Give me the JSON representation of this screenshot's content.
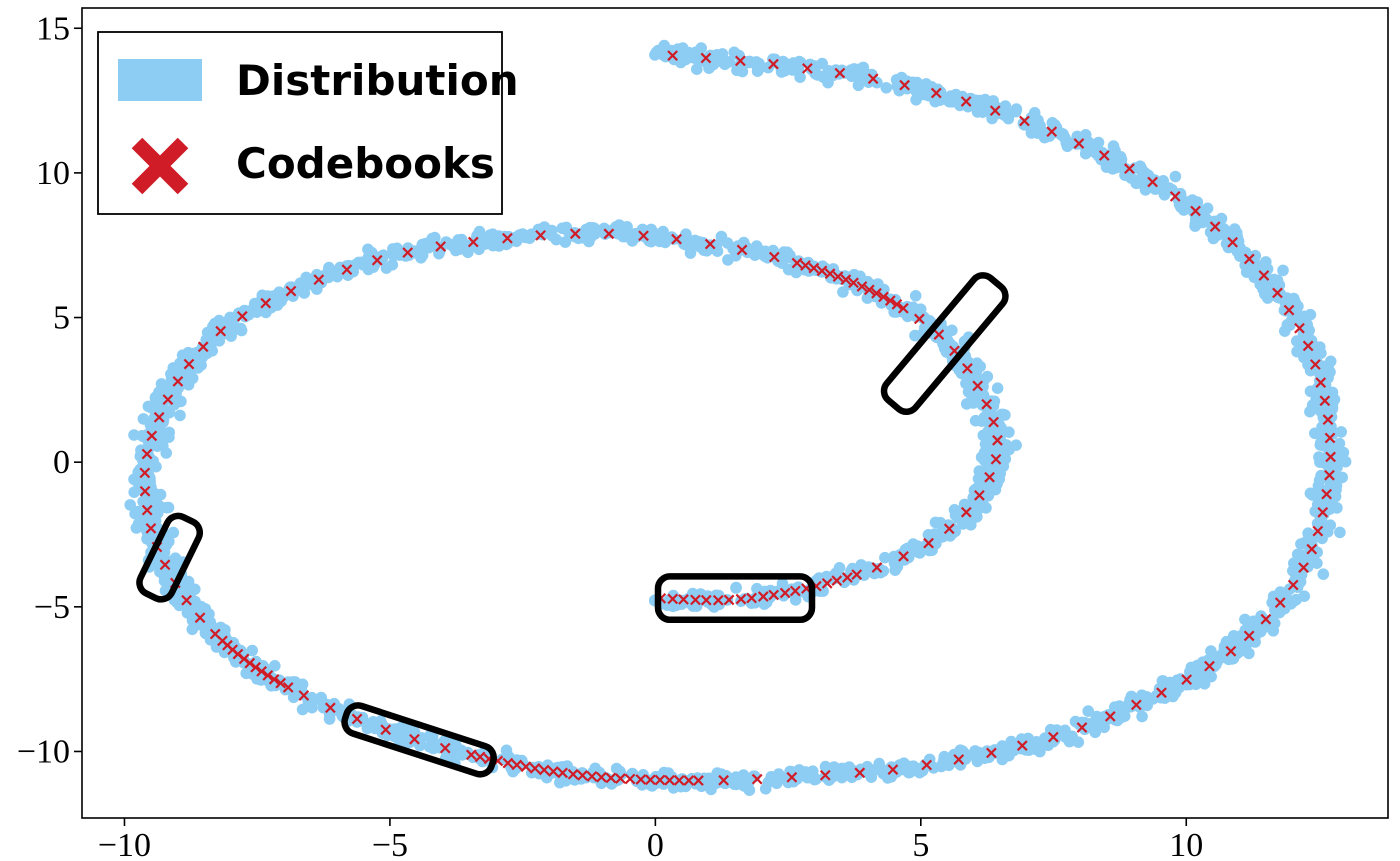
{
  "chart_data": {
    "type": "scatter",
    "xlim": [
      -10.8,
      13.8
    ],
    "ylim": [
      -12.3,
      15.7
    ],
    "xticks": [
      -10,
      -5,
      0,
      5,
      10
    ],
    "yticks": [
      -10,
      -5,
      0,
      5,
      10,
      15
    ],
    "xtick_labels": [
      "−10",
      "−5",
      "0",
      "5",
      "10"
    ],
    "ytick_labels": [
      "−10",
      "−5",
      "0",
      "5",
      "10",
      "15"
    ],
    "grid": false,
    "legend_position": "top-left",
    "series": [
      {
        "name": "Distribution",
        "marker": "filled-circle",
        "color": "#8ecdf3",
        "path_points": [
          [
            0,
            -4.7
          ],
          [
            1.5,
            -4.75
          ],
          [
            3,
            -4.3
          ],
          [
            4.5,
            -3.4
          ],
          [
            5.6,
            -2.2
          ],
          [
            6.3,
            -0.5
          ],
          [
            6.4,
            1.2
          ],
          [
            5.7,
            3.7
          ],
          [
            4.6,
            5.4
          ],
          [
            3,
            6.7
          ],
          [
            1,
            7.55
          ],
          [
            -1,
            7.9
          ],
          [
            -3,
            7.7
          ],
          [
            -5,
            7.1
          ],
          [
            -7,
            5.8
          ],
          [
            -8.4,
            4.2
          ],
          [
            -9.2,
            2.1
          ],
          [
            -9.6,
            0
          ],
          [
            -9.5,
            -2.3
          ],
          [
            -9.0,
            -4.3
          ],
          [
            -8.2,
            -6.1
          ],
          [
            -7,
            -7.7
          ],
          [
            -5.3,
            -9.1
          ],
          [
            -3.5,
            -10.1
          ],
          [
            -1.5,
            -10.8
          ],
          [
            0.5,
            -11.0
          ],
          [
            2.5,
            -10.9
          ],
          [
            5,
            -10.5
          ],
          [
            7.5,
            -9.5
          ],
          [
            9.5,
            -8.0
          ],
          [
            11,
            -6.3
          ],
          [
            12.1,
            -4.0
          ],
          [
            12.6,
            -1.5
          ],
          [
            12.7,
            1.0
          ],
          [
            12.3,
            4.0
          ],
          [
            11.3,
            6.8
          ],
          [
            9.7,
            9.3
          ],
          [
            7.5,
            11.4
          ],
          [
            5,
            12.9
          ],
          [
            2.5,
            13.7
          ],
          [
            0,
            14.1
          ]
        ],
        "band_half_width": 0.25,
        "point_count": 2600
      },
      {
        "name": "Codebooks",
        "marker": "x",
        "color": "#d01c26",
        "path_points": [
          [
            0,
            -4.7
          ],
          [
            1.5,
            -4.75
          ],
          [
            3,
            -4.3
          ],
          [
            4.5,
            -3.4
          ],
          [
            5.6,
            -2.2
          ],
          [
            6.3,
            -0.5
          ],
          [
            6.4,
            1.2
          ],
          [
            5.7,
            3.7
          ],
          [
            4.6,
            5.4
          ],
          [
            3,
            6.7
          ],
          [
            1,
            7.55
          ],
          [
            -1,
            7.9
          ],
          [
            -3,
            7.7
          ],
          [
            -5,
            7.1
          ],
          [
            -7,
            5.8
          ],
          [
            -8.4,
            4.2
          ],
          [
            -9.2,
            2.1
          ],
          [
            -9.6,
            0
          ],
          [
            -9.5,
            -2.3
          ],
          [
            -9.0,
            -4.3
          ],
          [
            -8.2,
            -6.1
          ],
          [
            -7,
            -7.7
          ],
          [
            -5.3,
            -9.1
          ],
          [
            -3.5,
            -10.1
          ],
          [
            -1.5,
            -10.8
          ],
          [
            0.5,
            -11.0
          ],
          [
            2.5,
            -10.9
          ],
          [
            5,
            -10.5
          ],
          [
            7.5,
            -9.5
          ],
          [
            9.5,
            -8.0
          ],
          [
            11,
            -6.3
          ],
          [
            12.1,
            -4.0
          ],
          [
            12.6,
            -1.5
          ],
          [
            12.7,
            1.0
          ],
          [
            12.3,
            4.0
          ],
          [
            11.3,
            6.8
          ],
          [
            9.7,
            9.3
          ],
          [
            7.5,
            11.4
          ],
          [
            5,
            12.9
          ],
          [
            2.5,
            13.7
          ],
          [
            0,
            14.1
          ]
        ],
        "dense_regions": [
          {
            "t_from": 0.0,
            "t_to": 0.045,
            "factor": 3
          },
          {
            "t_from": 0.16,
            "t_to": 0.19,
            "factor": 3.5
          },
          {
            "t_from": 0.445,
            "t_to": 0.47,
            "factor": 3.5
          },
          {
            "t_from": 0.515,
            "t_to": 0.565,
            "factor": 3.5
          }
        ],
        "point_count": 190
      }
    ],
    "annotations": [
      {
        "type": "rounded-rectangle",
        "center": [
          1.5,
          -4.7
        ],
        "width": 2.9,
        "height": 1.5,
        "angle_deg": 0,
        "color": "#000000"
      },
      {
        "type": "rounded-rectangle",
        "center": [
          5.45,
          4.1
        ],
        "width": 3.0,
        "height": 1.3,
        "angle_deg": 50,
        "color": "#000000"
      },
      {
        "type": "rounded-rectangle",
        "center": [
          -9.15,
          -3.3
        ],
        "width": 1.6,
        "height": 1.2,
        "angle_deg": 64,
        "color": "#000000"
      },
      {
        "type": "rounded-rectangle",
        "center": [
          -4.45,
          -9.6
        ],
        "width": 2.9,
        "height": 1.0,
        "angle_deg": -18,
        "color": "#000000"
      }
    ]
  }
}
